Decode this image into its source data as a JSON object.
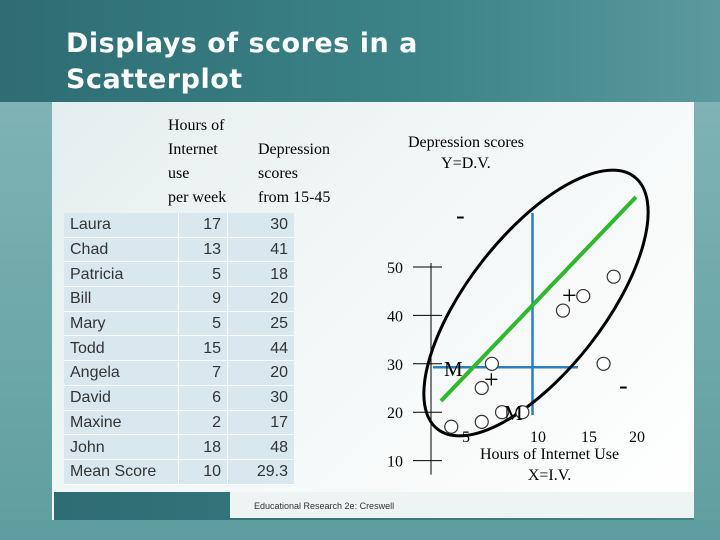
{
  "slide": {
    "title": "Displays of scores in a\nScatterplot",
    "footer": "Educational Research 2e: Creswell",
    "colors": {
      "frame": "#3c8488",
      "table_bg": "#d9e7ef",
      "fit_line": "#2db82d",
      "mean_lines": "#2a7fc1",
      "ellipse": "#000000"
    }
  },
  "table": {
    "hours_header": "Hours of\nInternet\nuse\nper week",
    "depression_header": "Depression\nscores\nfrom 15-45",
    "rows": [
      {
        "name": "Laura",
        "hours": "17",
        "depression": "30"
      },
      {
        "name": "Chad",
        "hours": "13",
        "depression": "41"
      },
      {
        "name": "Patricia",
        "hours": "5",
        "depression": "18"
      },
      {
        "name": "Bill",
        "hours": "9",
        "depression": "20"
      },
      {
        "name": "Mary",
        "hours": "5",
        "depression": "25"
      },
      {
        "name": "Todd",
        "hours": "15",
        "depression": "44"
      },
      {
        "name": "Angela",
        "hours": "7",
        "depression": "20"
      },
      {
        "name": "David",
        "hours": "6",
        "depression": "30"
      },
      {
        "name": "Maxine",
        "hours": "2",
        "depression": "17"
      },
      {
        "name": "John",
        "hours": "18",
        "depression": "48"
      },
      {
        "name": "Mean Score",
        "hours": "10",
        "depression": "29.3"
      }
    ]
  },
  "chart_data": {
    "type": "scatter",
    "ylabel": "Depression scores\nY=D.V.",
    "xlabel": "Hours of Internet Use\nX=I.V.",
    "x_ticks": [
      "5",
      "10",
      "15",
      "20"
    ],
    "y_ticks": [
      "50",
      "40",
      "30",
      "20",
      "10"
    ],
    "xlim": [
      0,
      20
    ],
    "ylim": [
      10,
      50
    ],
    "points": [
      {
        "x": 17,
        "y": 30
      },
      {
        "x": 13,
        "y": 41
      },
      {
        "x": 5,
        "y": 18
      },
      {
        "x": 9,
        "y": 20
      },
      {
        "x": 5,
        "y": 25
      },
      {
        "x": 15,
        "y": 44
      },
      {
        "x": 7,
        "y": 20
      },
      {
        "x": 6,
        "y": 30
      },
      {
        "x": 2,
        "y": 17
      },
      {
        "x": 18,
        "y": 48
      }
    ],
    "mean_x": 10,
    "mean_y": 29.3,
    "annotations": {
      "mean_x_label": "M",
      "mean_y_label": "M",
      "plus": "+",
      "minus": "-"
    }
  }
}
